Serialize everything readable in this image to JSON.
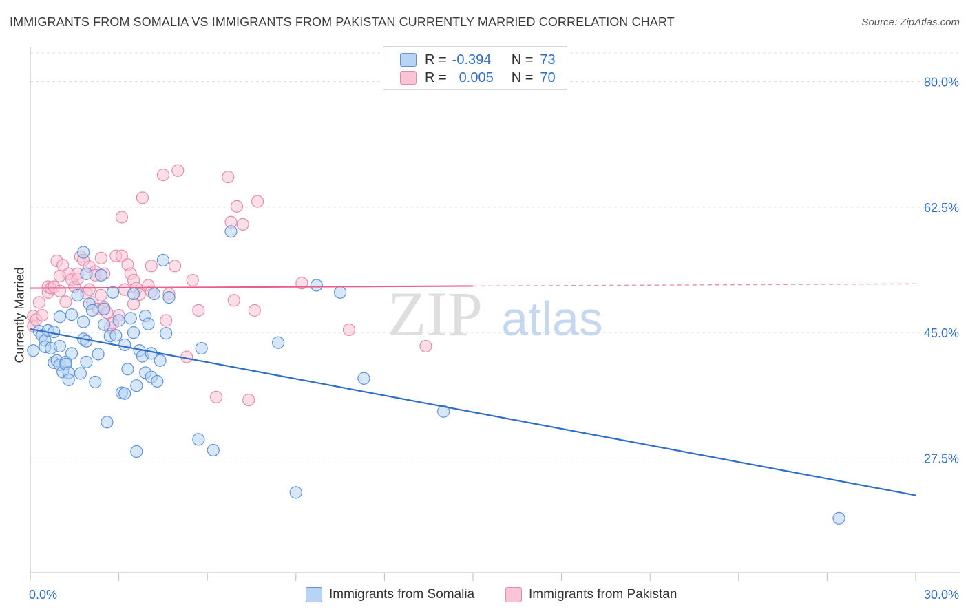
{
  "title": "IMMIGRANTS FROM SOMALIA VS IMMIGRANTS FROM PAKISTAN CURRENTLY MARRIED CORRELATION CHART",
  "source": "Source: ZipAtlas.com",
  "watermark": {
    "zip": "ZIP",
    "atlas": "atlas"
  },
  "legend_top": {
    "rows": [
      {
        "r_label": "R =",
        "r_value": "-0.394",
        "n_label": "N =",
        "n_value": "73"
      },
      {
        "r_label": "R =",
        "r_value": "0.005",
        "n_label": "N =",
        "n_value": "70"
      }
    ]
  },
  "legend_bottom": {
    "somalia": "Immigrants from Somalia",
    "pakistan": "Immigrants from Pakistan"
  },
  "colors": {
    "somalia_fill": "#b8d3f3",
    "somalia_stroke": "#5b93dc",
    "somalia_line": "#2f6ec8",
    "pakistan_fill": "#f8c4d6",
    "pakistan_stroke": "#e98aaa",
    "pakistan_line": "#e8608a",
    "grid": "#dddddd",
    "tick_label": "#2f6ec8",
    "watermark": "#dedede",
    "watermark_atlas": "#c5d8ef"
  },
  "chart_data": {
    "type": "scatter",
    "title": "IMMIGRANTS FROM SOMALIA VS IMMIGRANTS FROM PAKISTAN CURRENTLY MARRIED CORRELATION CHART",
    "xlabel": "",
    "ylabel": "Currently Married",
    "xlim": [
      0,
      30
    ],
    "ylim": [
      11.5,
      84
    ],
    "x_tick_labels": [
      "0.0%",
      "30.0%"
    ],
    "y_ticks": [
      27.5,
      45.0,
      62.5,
      80.0
    ],
    "y_tick_labels": [
      "27.5%",
      "45.0%",
      "62.5%",
      "80.0%"
    ],
    "grid": true,
    "legend_position": "top-center",
    "series": [
      {
        "name": "Immigrants from Somalia",
        "R": -0.394,
        "N": 73,
        "trend": {
          "x": [
            0,
            30
          ],
          "y": [
            45.5,
            22.3
          ],
          "solid_until": 30
        },
        "points": [
          [
            0.1,
            42.5
          ],
          [
            0.3,
            45.2
          ],
          [
            0.4,
            44.6
          ],
          [
            0.5,
            43.9
          ],
          [
            0.5,
            43.0
          ],
          [
            0.6,
            45.3
          ],
          [
            0.7,
            42.8
          ],
          [
            0.8,
            45.1
          ],
          [
            0.8,
            40.8
          ],
          [
            0.9,
            41.1
          ],
          [
            1.0,
            43.1
          ],
          [
            1.0,
            47.2
          ],
          [
            1.0,
            40.5
          ],
          [
            1.1,
            39.5
          ],
          [
            1.2,
            40.9
          ],
          [
            1.2,
            40.6
          ],
          [
            1.3,
            39.4
          ],
          [
            1.3,
            38.4
          ],
          [
            1.4,
            42.1
          ],
          [
            1.4,
            47.5
          ],
          [
            1.6,
            50.2
          ],
          [
            1.7,
            39.3
          ],
          [
            1.8,
            46.5
          ],
          [
            1.8,
            56.2
          ],
          [
            1.8,
            44.1
          ],
          [
            1.9,
            43.8
          ],
          [
            1.9,
            40.9
          ],
          [
            1.9,
            53.2
          ],
          [
            2.0,
            49.0
          ],
          [
            2.1,
            48.1
          ],
          [
            2.2,
            38.1
          ],
          [
            2.3,
            42.0
          ],
          [
            2.4,
            53.0
          ],
          [
            2.5,
            46.1
          ],
          [
            2.5,
            48.3
          ],
          [
            2.6,
            32.5
          ],
          [
            2.7,
            44.5
          ],
          [
            2.8,
            50.6
          ],
          [
            2.9,
            44.6
          ],
          [
            3.0,
            46.7
          ],
          [
            3.1,
            36.6
          ],
          [
            3.2,
            36.5
          ],
          [
            3.2,
            43.3
          ],
          [
            3.3,
            39.9
          ],
          [
            3.4,
            47.0
          ],
          [
            3.5,
            50.4
          ],
          [
            3.5,
            45.0
          ],
          [
            3.6,
            37.6
          ],
          [
            3.6,
            28.4
          ],
          [
            3.7,
            42.5
          ],
          [
            3.8,
            41.7
          ],
          [
            3.9,
            39.4
          ],
          [
            3.9,
            47.3
          ],
          [
            4.0,
            46.2
          ],
          [
            4.1,
            38.8
          ],
          [
            4.1,
            42.1
          ],
          [
            4.2,
            50.4
          ],
          [
            4.3,
            38.2
          ],
          [
            4.4,
            41.1
          ],
          [
            4.5,
            55.1
          ],
          [
            4.6,
            44.9
          ],
          [
            4.7,
            49.9
          ],
          [
            5.7,
            30.1
          ],
          [
            5.8,
            42.8
          ],
          [
            6.2,
            28.6
          ],
          [
            6.8,
            59.1
          ],
          [
            8.4,
            43.6
          ],
          [
            9.0,
            22.7
          ],
          [
            9.7,
            51.6
          ],
          [
            10.5,
            50.6
          ],
          [
            11.3,
            38.6
          ],
          [
            14.0,
            34.0
          ],
          [
            27.4,
            19.1
          ]
        ]
      },
      {
        "name": "Immigrants from Pakistan",
        "R": 0.005,
        "N": 70,
        "trend": {
          "x": [
            0,
            30
          ],
          "y": [
            51.2,
            51.8
          ],
          "solid_until": 15
        },
        "points": [
          [
            0.1,
            47.3
          ],
          [
            0.1,
            45.9
          ],
          [
            0.2,
            46.8
          ],
          [
            0.3,
            49.2
          ],
          [
            0.4,
            47.4
          ],
          [
            0.6,
            51.4
          ],
          [
            0.6,
            50.6
          ],
          [
            0.7,
            51.2
          ],
          [
            0.8,
            51.4
          ],
          [
            0.9,
            55.0
          ],
          [
            1.0,
            50.8
          ],
          [
            1.0,
            52.9
          ],
          [
            1.1,
            54.4
          ],
          [
            1.2,
            49.3
          ],
          [
            1.3,
            53.2
          ],
          [
            1.4,
            52.4
          ],
          [
            1.5,
            51.4
          ],
          [
            1.6,
            53.2
          ],
          [
            1.6,
            52.5
          ],
          [
            1.7,
            55.6
          ],
          [
            1.8,
            55.1
          ],
          [
            1.9,
            50.5
          ],
          [
            2.0,
            51.0
          ],
          [
            2.0,
            54.2
          ],
          [
            2.1,
            49.2
          ],
          [
            2.2,
            53.5
          ],
          [
            2.2,
            53.0
          ],
          [
            2.3,
            48.3
          ],
          [
            2.4,
            50.2
          ],
          [
            2.4,
            55.4
          ],
          [
            2.5,
            53.2
          ],
          [
            2.5,
            48.5
          ],
          [
            2.6,
            47.8
          ],
          [
            2.7,
            45.7
          ],
          [
            2.8,
            46.3
          ],
          [
            2.9,
            55.7
          ],
          [
            3.0,
            47.4
          ],
          [
            3.1,
            55.7
          ],
          [
            3.1,
            61.1
          ],
          [
            3.2,
            51.0
          ],
          [
            3.3,
            54.5
          ],
          [
            3.4,
            53.2
          ],
          [
            3.5,
            52.3
          ],
          [
            3.5,
            49.0
          ],
          [
            3.6,
            51.2
          ],
          [
            3.7,
            50.3
          ],
          [
            3.8,
            63.8
          ],
          [
            4.0,
            51.6
          ],
          [
            4.1,
            50.7
          ],
          [
            4.1,
            54.3
          ],
          [
            4.5,
            67.0
          ],
          [
            4.6,
            46.7
          ],
          [
            4.7,
            50.4
          ],
          [
            4.9,
            54.3
          ],
          [
            5.0,
            67.6
          ],
          [
            5.3,
            41.6
          ],
          [
            5.5,
            52.3
          ],
          [
            5.7,
            48.1
          ],
          [
            6.3,
            36.0
          ],
          [
            6.7,
            66.7
          ],
          [
            6.8,
            60.4
          ],
          [
            6.9,
            49.5
          ],
          [
            7.0,
            62.6
          ],
          [
            7.2,
            60.1
          ],
          [
            7.4,
            35.6
          ],
          [
            7.6,
            48.1
          ],
          [
            7.7,
            63.3
          ],
          [
            9.2,
            51.9
          ],
          [
            10.8,
            45.4
          ],
          [
            13.4,
            43.1
          ]
        ]
      }
    ]
  }
}
